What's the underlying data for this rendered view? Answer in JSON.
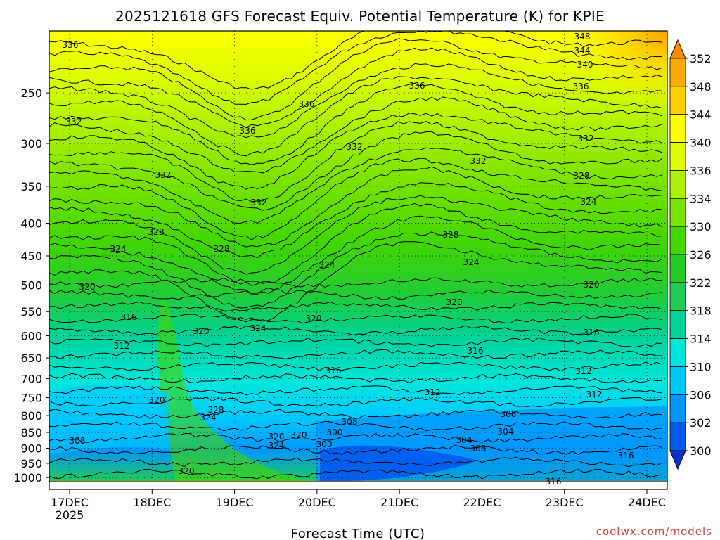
{
  "chart_data": {
    "type": "heatmap",
    "title": "2025121618 GFS Forecast Equiv. Potential Temperature (K) for KPIE",
    "xlabel": "Forecast Time (UTC)",
    "ylabel": "",
    "x_ticks": [
      "17DEC",
      "18DEC",
      "19DEC",
      "20DEC",
      "21DEC",
      "22DEC",
      "23DEC",
      "24DEC"
    ],
    "x_year": "2025",
    "y_ticks": [
      "250",
      "300",
      "350",
      "400",
      "450",
      "500",
      "550",
      "600",
      "650",
      "700",
      "750",
      "800",
      "850",
      "900",
      "950",
      "1000"
    ],
    "y_tick_values": [
      250,
      300,
      350,
      400,
      450,
      500,
      550,
      600,
      650,
      700,
      750,
      800,
      850,
      900,
      950,
      1000
    ],
    "ylim": [
      200,
      1015
    ],
    "y_inverted": true,
    "colorbar": {
      "labels": [
        "352",
        "348",
        "344",
        "340",
        "336",
        "334",
        "330",
        "326",
        "322",
        "318",
        "314",
        "310",
        "306",
        "302",
        "300"
      ],
      "colors": [
        "#ff8c00",
        "#ffaa00",
        "#ffd000",
        "#ffff00",
        "#ddff00",
        "#aaf000",
        "#77e300",
        "#44d600",
        "#22cc22",
        "#22cc55",
        "#00d29a",
        "#00e6dc",
        "#00c8ff",
        "#0096ff",
        "#005aee",
        "#0a32c8"
      ]
    },
    "contour_labels": [
      "336",
      "332",
      "328",
      "324",
      "320",
      "316",
      "312",
      "308",
      "304",
      "300",
      "348",
      "344",
      "340"
    ],
    "credit": "coolwx.com/models"
  }
}
